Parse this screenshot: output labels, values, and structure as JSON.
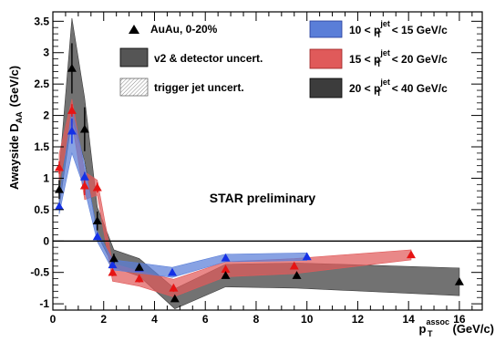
{
  "chart_data": {
    "type": "scatter",
    "title": "",
    "xlabel": {
      "main": "p",
      "sub": "T",
      "sup": "assoc",
      "unit": "(GeV/c)"
    },
    "ylabel": {
      "main": "Awayside D",
      "sub": "AA",
      "unit": "(GeV/c)"
    },
    "xlim": [
      0,
      16.9
    ],
    "ylim": [
      -1.1,
      3.65
    ],
    "xticks": [
      0,
      2,
      4,
      6,
      8,
      10,
      12,
      14,
      16
    ],
    "yticks": [
      -1,
      -0.5,
      0,
      0.5,
      1,
      1.5,
      2,
      2.5,
      3,
      3.5
    ],
    "xtick_labels": [
      "0",
      "2",
      "4",
      "6",
      "8",
      "10",
      "12",
      "14",
      "16"
    ],
    "ytick_labels": [
      "-1",
      "-0.5",
      "0",
      "0.5",
      "1",
      "1.5",
      "2",
      "2.5",
      "3",
      "3.5"
    ],
    "zero_line": true,
    "grid": false,
    "legend_placement": "top",
    "legend": [
      {
        "label": "AuAu, 0-20%",
        "kind": "marker"
      },
      {
        "label": "v2 & detector uncert.",
        "kind": "box"
      },
      {
        "label": "trigger jet uncert.",
        "kind": "hatch"
      },
      {
        "label": {
          "pre": "10 < p",
          "sup": "jet",
          "sub": "T",
          "post": " < 15 GeV/c"
        },
        "kind": "series",
        "series": 0
      },
      {
        "label": {
          "pre": "15 < p",
          "sup": "jet",
          "sub": "T",
          "post": " < 20 GeV/c"
        },
        "kind": "series",
        "series": 1
      },
      {
        "label": {
          "pre": "20 < p",
          "sup": "jet",
          "sub": "T",
          "post": " < 40 GeV/c"
        },
        "kind": "series",
        "series": 2
      }
    ],
    "annotations": [
      "STAR preliminary"
    ],
    "series": [
      {
        "color": "#1430e6",
        "band_color": "#5a7ed8",
        "x": [
          0.25,
          0.75,
          1.25,
          1.75,
          2.35,
          3.4,
          4.7,
          6.8,
          10.0
        ],
        "y": [
          0.55,
          1.75,
          1.02,
          0.07,
          -0.38,
          -0.43,
          -0.5,
          -0.27,
          -0.25
        ],
        "err": [
          0.05,
          0.2,
          0.08,
          0.05,
          0.05,
          0.05,
          0.05,
          0.04,
          0.04
        ],
        "band": [
          0.12,
          0.35,
          0.2,
          0.08,
          0.08,
          0.08,
          0.08,
          0.06,
          0.06
        ]
      },
      {
        "color": "#e61414",
        "band_color": "#e05a5a",
        "x": [
          0.25,
          0.75,
          1.25,
          1.75,
          2.35,
          3.4,
          4.75,
          6.8,
          9.5,
          14.1
        ],
        "y": [
          1.17,
          2.08,
          0.88,
          0.85,
          -0.5,
          -0.6,
          -0.75,
          -0.45,
          -0.4,
          -0.22
        ],
        "err": [
          0.1,
          0.1,
          0.15,
          0.08,
          0.06,
          0.06,
          0.06,
          0.05,
          0.05,
          0.04
        ],
        "band": [
          0.22,
          0.18,
          0.22,
          0.12,
          0.14,
          0.12,
          0.14,
          0.12,
          0.12,
          0.08
        ]
      },
      {
        "color": "#000000",
        "band_color": "#3c3c3c",
        "x": [
          0.25,
          0.75,
          1.25,
          1.75,
          2.4,
          3.4,
          4.8,
          6.8,
          9.6,
          16.0
        ],
        "y": [
          0.82,
          2.75,
          1.78,
          0.32,
          -0.28,
          -0.42,
          -0.92,
          -0.55,
          -0.55,
          -0.65
        ],
        "err": [
          0.15,
          0.4,
          0.35,
          0.15,
          0.08,
          0.05,
          0.05,
          0.05,
          0.05,
          0.05
        ],
        "band": [
          0.28,
          0.8,
          0.5,
          0.22,
          0.14,
          0.14,
          0.16,
          0.18,
          0.2,
          0.22
        ]
      }
    ]
  }
}
